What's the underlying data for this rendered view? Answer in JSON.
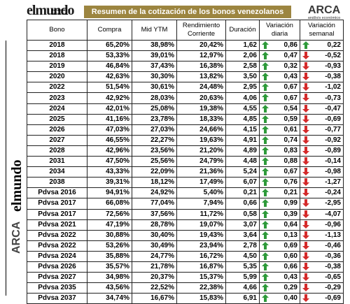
{
  "header": {
    "title": "Resumen de la cotización de los bonos venezolanos",
    "logo_left": "elmundo",
    "logo_left_sub": "ECONOMÍA Y NEGOCIOS",
    "logo_right": "ARCA",
    "logo_right_sub": "análisis económico"
  },
  "side_logos": {
    "top": "elmundo",
    "bottom": "ARCA"
  },
  "table": {
    "header": [
      "Bono",
      "Compra",
      "Mid YTM",
      "Rendimiento Corriente",
      "Duración",
      "Variación diaria",
      "Variación semanal"
    ],
    "rows": [
      [
        "2018",
        "65,20%",
        "38,98%",
        "20,42%",
        "1,62",
        "0,86",
        "0,22"
      ],
      [
        "2018",
        "53,33%",
        "39,01%",
        "12,97%",
        "2,06",
        "0,47",
        "-0,52"
      ],
      [
        "2019",
        "46,84%",
        "37,43%",
        "16,38%",
        "2,58",
        "0,32",
        "-0,93"
      ],
      [
        "2020",
        "42,63%",
        "30,30%",
        "13,82%",
        "3,50",
        "0,43",
        "-0,38"
      ],
      [
        "2022",
        "51,54%",
        "30,61%",
        "24,48%",
        "2,95",
        "0,67",
        "-1,02"
      ],
      [
        "2023",
        "42,92%",
        "28,03%",
        "20,63%",
        "4,06",
        "0,67",
        "-0,73"
      ],
      [
        "2024",
        "42,01%",
        "25,08%",
        "19,38%",
        "4,55",
        "0,54",
        "-0,47"
      ],
      [
        "2025",
        "41,16%",
        "23,78%",
        "18,33%",
        "4,85",
        "0,59",
        "-0,69"
      ],
      [
        "2026",
        "47,03%",
        "27,03%",
        "24,66%",
        "4,15",
        "0,61",
        "-0,77"
      ],
      [
        "2027",
        "46,55%",
        "22,27%",
        "19,63%",
        "4,91",
        "0,74",
        "-0,92"
      ],
      [
        "2028",
        "42,96%",
        "23,56%",
        "21,20%",
        "4,89",
        "0,83",
        "-0,89"
      ],
      [
        "2031",
        "47,50%",
        "25,56%",
        "24,79%",
        "4,48",
        "0,88",
        "-0,14"
      ],
      [
        "2034",
        "43,33%",
        "22,09%",
        "21,36%",
        "5,24",
        "0,67",
        "-0,98"
      ],
      [
        "2038",
        "39,31%",
        "18,12%",
        "17,49%",
        "6,07",
        "0,76",
        "-1,27"
      ],
      [
        "Pdvsa 2016",
        "94,91%",
        "24,92%",
        "5,40%",
        "0,21",
        "0,21",
        "-0,24"
      ],
      [
        "Pdvsa 2017",
        "66,08%",
        "77,04%",
        "7,94%",
        "0,66",
        "0,99",
        "-2,95"
      ],
      [
        "Pdvsa 2017",
        "72,56%",
        "37,56%",
        "11,72%",
        "0,58",
        "0,39",
        "-4,07"
      ],
      [
        "Pdvsa 2021",
        "47,19%",
        "28,78%",
        "19,07%",
        "3,07",
        "0,64",
        "-0,96"
      ],
      [
        "Pdvsa 2022",
        "30,88%",
        "30,40%",
        "19,43%",
        "3,64",
        "0,13",
        "-1,13"
      ],
      [
        "Pdvsa 2022",
        "53,26%",
        "30,49%",
        "23,94%",
        "2,78",
        "0,69",
        "-0,46"
      ],
      [
        "Pdvsa 2024",
        "35,88%",
        "24,77%",
        "16,72%",
        "4,50",
        "0,60",
        "-0,36"
      ],
      [
        "Pdvsa 2026",
        "35,57%",
        "21,78%",
        "16,87%",
        "5,35",
        "0,66",
        "-0,38"
      ],
      [
        "Pdvsa 2027",
        "34,98%",
        "20,37%",
        "15,37%",
        "5,99",
        "0,43",
        "-0,65"
      ],
      [
        "Pdvsa 2035",
        "43,56%",
        "22,52%",
        "22,38%",
        "4,66",
        "0,29",
        "-0,29"
      ],
      [
        "Pdvsa 2037",
        "34,74%",
        "16,67%",
        "15,83%",
        "6,91",
        "0,40",
        "-0,69"
      ]
    ]
  }
}
